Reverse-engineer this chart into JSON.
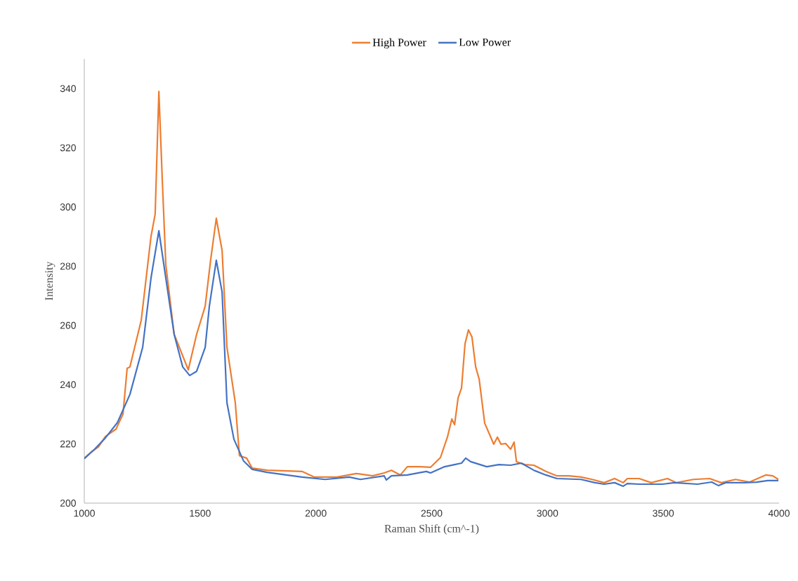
{
  "chart_data": {
    "type": "line",
    "xlabel": "Raman Shift (cm^-1)",
    "ylabel": "Intensity",
    "xlim": [
      1000,
      4000
    ],
    "xticks": [
      1000,
      1500,
      2000,
      2500,
      3000,
      3500,
      4000
    ],
    "ylim": [
      200,
      350
    ],
    "yticks": [
      200,
      220,
      240,
      260,
      280,
      300,
      320,
      340
    ],
    "grid": false,
    "legend": "top",
    "series": [
      {
        "name": "High Power",
        "color": "#ed7d31",
        "x": [
          1000,
          1030,
          1061,
          1091,
          1137,
          1167,
          1185,
          1197,
          1246,
          1288,
          1306,
          1322,
          1337,
          1352,
          1388,
          1449,
          1485,
          1522,
          1546,
          1570,
          1595,
          1616,
          1652,
          1670,
          1701,
          1725,
          1789,
          1940,
          1992,
          2092,
          2174,
          2244,
          2295,
          2326,
          2365,
          2395,
          2447,
          2495,
          2538,
          2568,
          2587,
          2599,
          2614,
          2629,
          2644,
          2659,
          2674,
          2690,
          2705,
          2729,
          2768,
          2784,
          2799,
          2820,
          2841,
          2856,
          2866,
          2902,
          2941,
          2993,
          3041,
          3093,
          3145,
          3193,
          3245,
          3290,
          3327,
          3345,
          3396,
          3448,
          3518,
          3557,
          3630,
          3700,
          3751,
          3812,
          3873,
          3942,
          3973,
          3997
        ],
        "values": [
          215.2,
          217.3,
          219,
          222.5,
          225,
          230,
          245.5,
          246,
          261.8,
          290,
          297.6,
          339,
          308.7,
          280.5,
          257,
          245,
          257,
          266.5,
          282.4,
          296.2,
          285.3,
          252.6,
          233.9,
          216,
          215.2,
          211.8,
          211.1,
          210.7,
          208.8,
          208.8,
          210,
          209.2,
          210.2,
          211.1,
          209.5,
          212.3,
          212.3,
          212.1,
          215.4,
          222.3,
          228.4,
          226.5,
          235.5,
          238.9,
          253.8,
          258.5,
          256.1,
          246,
          241.9,
          227,
          219.9,
          222.3,
          219.9,
          220.1,
          218.2,
          220.6,
          214,
          213,
          212.8,
          210.7,
          209.2,
          209.2,
          208.8,
          208,
          206.9,
          208.3,
          206.9,
          208.3,
          208.3,
          206.9,
          208.3,
          206.9,
          208,
          208.3,
          206.9,
          208,
          207.1,
          209.5,
          209.2,
          208
        ]
      },
      {
        "name": "Low Power",
        "color": "#4472c4",
        "x": [
          1000,
          1042,
          1091,
          1143,
          1197,
          1252,
          1288,
          1322,
          1352,
          1388,
          1425,
          1455,
          1485,
          1522,
          1540,
          1570,
          1595,
          1616,
          1646,
          1688,
          1725,
          1789,
          1940,
          2040,
          2144,
          2192,
          2295,
          2304,
          2326,
          2395,
          2477,
          2495,
          2556,
          2599,
          2629,
          2647,
          2668,
          2738,
          2790,
          2841,
          2887,
          2941,
          2993,
          3041,
          3145,
          3205,
          3245,
          3290,
          3327,
          3345,
          3396,
          3497,
          3548,
          3648,
          3709,
          3739,
          3769,
          3851,
          3903,
          3951,
          3997
        ],
        "values": [
          215,
          218,
          222,
          227.2,
          236.7,
          252.6,
          276,
          292,
          276,
          257,
          246,
          243.1,
          244.5,
          252.6,
          266.5,
          282,
          271.3,
          233.9,
          221.6,
          214.2,
          211.4,
          210.4,
          208.8,
          208,
          208.8,
          208,
          209.2,
          207.8,
          209.2,
          209.5,
          210.7,
          210.2,
          212.3,
          213,
          213.5,
          215.2,
          214,
          212.3,
          213,
          212.8,
          213.5,
          211.1,
          209.5,
          208.3,
          208,
          206.9,
          206.4,
          206.9,
          205.7,
          206.6,
          206.4,
          206.4,
          206.9,
          206.4,
          207.1,
          205.9,
          206.9,
          206.9,
          207.1,
          207.6,
          207.6
        ]
      }
    ]
  }
}
